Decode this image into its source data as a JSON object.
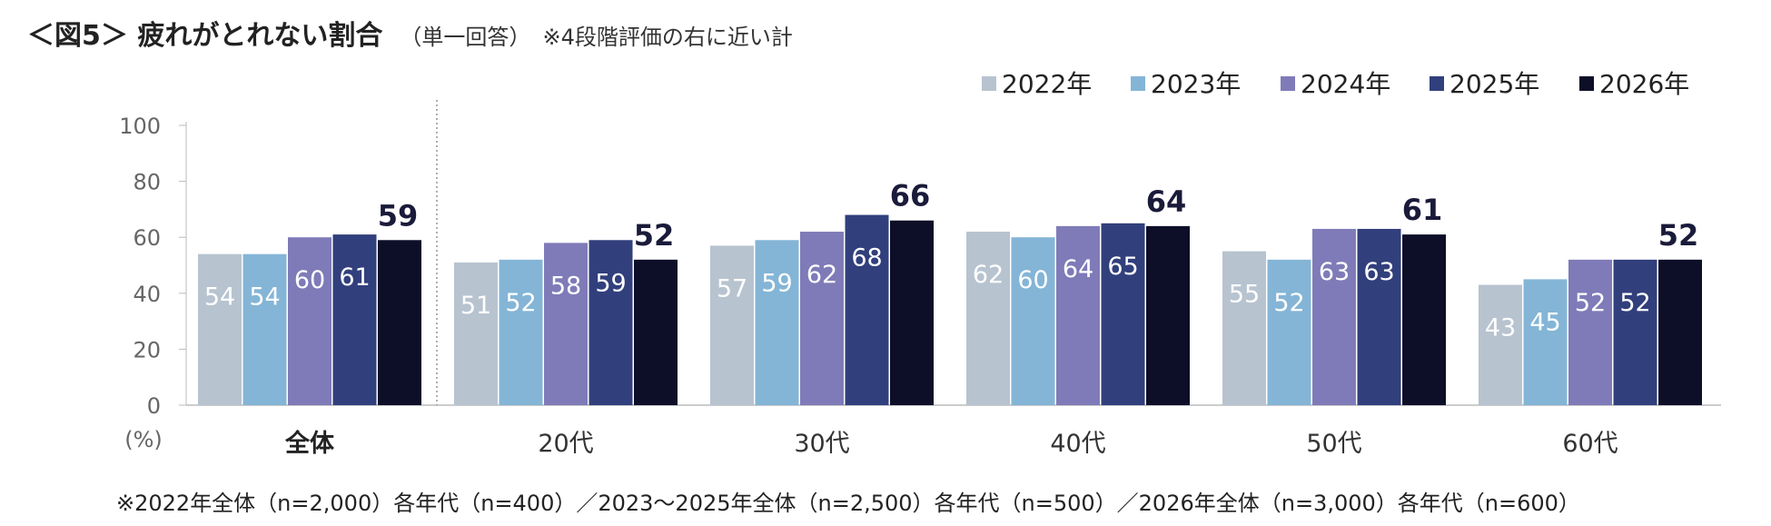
{
  "header": {
    "title": "＜図5＞ 疲れがとれない割合",
    "subtitle": "（単一回答）",
    "note": "※4段階評価の右に近い計"
  },
  "footnote": "※2022年全体（n=2,000）各年代（n=400）／2023～2025年全体（n=2,500）各年代（n=500）／2026年全体（n=3,000）各年代（n=600）",
  "chart_data": {
    "type": "bar",
    "title": "疲れがとれない割合",
    "ylabel": "(%)",
    "ylim": [
      0,
      100
    ],
    "yticks": [
      0,
      20,
      40,
      60,
      80,
      100
    ],
    "categories": [
      "全体",
      "20代",
      "30代",
      "40代",
      "50代",
      "60代"
    ],
    "bold_categories": [
      "全体"
    ],
    "legend_position": "top-right",
    "series": [
      {
        "name": "2022年",
        "color": "#b7c3cf",
        "values": [
          54,
          51,
          57,
          62,
          55,
          43
        ]
      },
      {
        "name": "2023年",
        "color": "#84b5d6",
        "values": [
          54,
          52,
          59,
          60,
          52,
          45
        ]
      },
      {
        "name": "2024年",
        "color": "#7f7bb8",
        "values": [
          60,
          58,
          62,
          64,
          63,
          52
        ]
      },
      {
        "name": "2025年",
        "color": "#313f7c",
        "values": [
          61,
          59,
          68,
          65,
          63,
          52
        ]
      },
      {
        "name": "2026年",
        "color": "#0d0e28",
        "values": [
          59,
          52,
          66,
          64,
          61,
          52
        ]
      }
    ],
    "highlight_series": "2026年"
  }
}
